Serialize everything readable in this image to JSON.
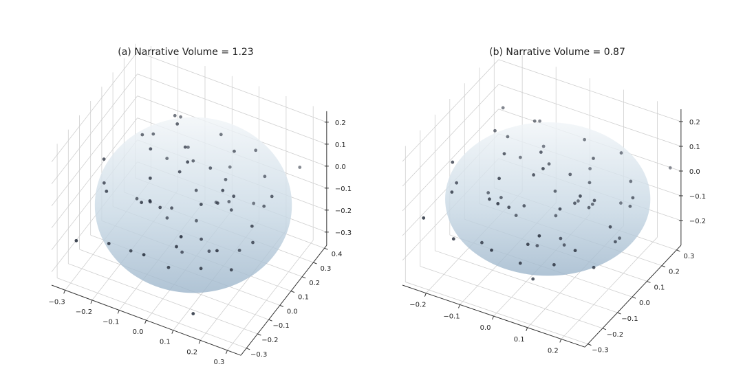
{
  "chart_data": [
    {
      "type": "scatter",
      "projection": "3d",
      "title": "(a) Narrative Volume = 1.23",
      "xlim": [
        -0.35,
        0.35
      ],
      "ylim": [
        -0.35,
        0.42
      ],
      "zlim": [
        -0.36,
        0.25
      ],
      "xticks": [
        -0.3,
        -0.2,
        -0.1,
        0.0,
        0.1,
        0.2,
        0.3
      ],
      "xtick_labels": [
        "−0.3",
        "−0.2",
        "−0.1",
        "0.0",
        "0.1",
        "0.2",
        "0.3"
      ],
      "yticks": [
        -0.3,
        -0.2,
        -0.1,
        0.0,
        0.1,
        0.2,
        0.3,
        0.4
      ],
      "ytick_labels": [
        "−0.3",
        "−0.2",
        "−0.1",
        "0.0",
        "0.1",
        "0.2",
        "0.3",
        "0.4"
      ],
      "zticks": [
        -0.3,
        -0.2,
        -0.1,
        0.0,
        0.1,
        0.2
      ],
      "ztick_labels": [
        "−0.3",
        "−0.2",
        "−0.1",
        "0.0",
        "0.1",
        "0.2"
      ],
      "grid": true,
      "ellipsoid": {
        "center": [
          0.03,
          0.0,
          -0.05
        ],
        "radii": [
          0.34,
          0.33,
          0.3
        ],
        "color": "#a9c0d4"
      },
      "point_color": "#2b3240",
      "points": [
        [
          -0.2,
          0.1,
          0.1
        ],
        [
          0.05,
          0.2,
          0.15
        ],
        [
          0.1,
          -0.1,
          0.05
        ],
        [
          -0.05,
          0.0,
          -0.1
        ],
        [
          0.15,
          0.05,
          -0.05
        ],
        [
          -0.1,
          -0.15,
          0.0
        ],
        [
          0.2,
          -0.05,
          0.1
        ],
        [
          0.0,
          0.1,
          -0.2
        ],
        [
          -0.15,
          0.05,
          -0.15
        ],
        [
          0.1,
          0.15,
          -0.1
        ],
        [
          0.05,
          -0.2,
          -0.1
        ],
        [
          -0.25,
          -0.1,
          -0.05
        ],
        [
          0.22,
          0.18,
          0.05
        ],
        [
          -0.08,
          0.22,
          0.02
        ],
        [
          0.12,
          -0.15,
          -0.2
        ],
        [
          0.0,
          -0.05,
          0.12
        ],
        [
          -0.18,
          0.15,
          0.08
        ],
        [
          0.25,
          0.0,
          -0.12
        ],
        [
          0.02,
          0.05,
          -0.02
        ],
        [
          -0.05,
          -0.25,
          -0.15
        ],
        [
          0.17,
          0.22,
          0.12
        ],
        [
          -0.12,
          -0.02,
          0.15
        ],
        [
          0.08,
          0.02,
          -0.25
        ],
        [
          -0.02,
          0.12,
          0.05
        ],
        [
          0.3,
          0.05,
          0.08
        ],
        [
          -0.3,
          0.0,
          -0.1
        ],
        [
          0.05,
          0.28,
          -0.05
        ],
        [
          0.1,
          -0.28,
          0.02
        ],
        [
          -0.1,
          0.08,
          -0.22
        ],
        [
          0.14,
          0.1,
          0.18
        ],
        [
          -0.2,
          -0.2,
          -0.2
        ],
        [
          0.2,
          -0.2,
          -0.05
        ],
        [
          -0.06,
          -0.08,
          -0.05
        ],
        [
          0.06,
          0.08,
          0.08
        ],
        [
          0.0,
          -0.15,
          -0.25
        ],
        [
          -0.15,
          0.2,
          -0.05
        ],
        [
          0.25,
          0.1,
          -0.02
        ],
        [
          -0.08,
          -0.12,
          0.1
        ],
        [
          0.12,
          0.0,
          0.0
        ],
        [
          -0.22,
          0.1,
          -0.2
        ],
        [
          0.04,
          0.18,
          -0.15
        ],
        [
          0.18,
          -0.1,
          0.15
        ],
        [
          -0.12,
          0.25,
          0.12
        ],
        [
          0.0,
          0.0,
          0.2
        ],
        [
          0.08,
          -0.05,
          -0.15
        ],
        [
          -0.28,
          -0.05,
          0.05
        ],
        [
          0.15,
          0.25,
          -0.15
        ],
        [
          -0.04,
          -0.22,
          0.08
        ],
        [
          0.22,
          -0.12,
          -0.18
        ],
        [
          -0.16,
          -0.1,
          -0.28
        ],
        [
          0.1,
          0.12,
          0.02
        ],
        [
          -0.02,
          0.02,
          -0.3
        ],
        [
          0.05,
          -0.1,
          0.22
        ],
        [
          -0.1,
          0.15,
          0.2
        ],
        [
          0.28,
          -0.08,
          0.02
        ],
        [
          0.12,
          -0.22,
          -0.36
        ],
        [
          -0.3,
          -0.25,
          -0.2
        ],
        [
          0.3,
          0.3,
          0.05
        ],
        [
          -0.05,
          0.05,
          0.25
        ],
        [
          0.18,
          0.05,
          -0.22
        ]
      ]
    },
    {
      "type": "scatter",
      "projection": "3d",
      "title": "(b) Narrative Volume = 0.87",
      "xlim": [
        -0.27,
        0.27
      ],
      "ylim": [
        -0.32,
        0.33
      ],
      "zlim": [
        -0.3,
        0.25
      ],
      "xticks": [
        -0.2,
        -0.1,
        0.0,
        0.1,
        0.2
      ],
      "xtick_labels": [
        "−0.2",
        "−0.1",
        "0.0",
        "0.1",
        "0.2"
      ],
      "yticks": [
        -0.3,
        -0.2,
        -0.1,
        0.0,
        0.1,
        0.2,
        0.3
      ],
      "ytick_labels": [
        "−0.3",
        "−0.2",
        "−0.1",
        "0.0",
        "0.1",
        "0.2",
        "0.3"
      ],
      "zticks": [
        -0.2,
        -0.1,
        0.0,
        0.1,
        0.2
      ],
      "ztick_labels": [
        "−0.2",
        "−0.1",
        "0.0",
        "0.1",
        "0.2"
      ],
      "grid": true,
      "ellipsoid": {
        "center": [
          0.02,
          0.0,
          -0.02
        ],
        "radii": [
          0.28,
          0.28,
          0.22
        ],
        "color": "#a9c0d4"
      },
      "point_color": "#2b3240",
      "points": [
        [
          -0.18,
          0.1,
          0.1
        ],
        [
          0.05,
          0.18,
          0.12
        ],
        [
          0.1,
          -0.1,
          0.04
        ],
        [
          -0.05,
          0.0,
          -0.08
        ],
        [
          0.12,
          0.05,
          -0.04
        ],
        [
          -0.1,
          -0.12,
          0.0
        ],
        [
          0.18,
          -0.05,
          0.08
        ],
        [
          0.0,
          0.1,
          -0.16
        ],
        [
          -0.14,
          0.05,
          -0.12
        ],
        [
          0.1,
          0.12,
          -0.08
        ],
        [
          0.04,
          -0.18,
          -0.08
        ],
        [
          -0.22,
          -0.1,
          -0.04
        ],
        [
          0.2,
          0.15,
          0.04
        ],
        [
          -0.08,
          0.2,
          0.02
        ],
        [
          0.1,
          -0.14,
          -0.16
        ],
        [
          0.0,
          -0.05,
          0.1
        ],
        [
          -0.16,
          0.14,
          0.06
        ],
        [
          0.22,
          0.0,
          -0.1
        ],
        [
          0.02,
          0.05,
          -0.02
        ],
        [
          -0.05,
          -0.22,
          -0.12
        ],
        [
          0.15,
          0.2,
          0.1
        ],
        [
          -0.1,
          -0.02,
          0.12
        ],
        [
          0.06,
          0.02,
          -0.2
        ],
        [
          -0.02,
          0.1,
          0.04
        ],
        [
          0.25,
          0.05,
          0.06
        ],
        [
          -0.25,
          0.0,
          -0.08
        ],
        [
          0.04,
          0.24,
          -0.04
        ],
        [
          0.1,
          -0.24,
          0.02
        ],
        [
          -0.1,
          0.06,
          -0.18
        ],
        [
          0.12,
          0.08,
          0.14
        ],
        [
          -0.18,
          -0.18,
          -0.16
        ],
        [
          0.18,
          -0.18,
          -0.04
        ],
        [
          -0.06,
          -0.08,
          -0.04
        ],
        [
          0.06,
          0.06,
          0.06
        ],
        [
          0.0,
          -0.14,
          -0.2
        ],
        [
          -0.14,
          0.18,
          -0.04
        ],
        [
          0.22,
          0.1,
          -0.02
        ],
        [
          -0.08,
          -0.1,
          0.08
        ],
        [
          0.1,
          0.0,
          0.0
        ],
        [
          -0.2,
          0.1,
          -0.16
        ],
        [
          0.04,
          0.16,
          -0.12
        ],
        [
          0.16,
          -0.1,
          0.12
        ],
        [
          -0.1,
          0.22,
          0.1
        ],
        [
          0.0,
          0.0,
          0.16
        ],
        [
          0.08,
          -0.05,
          -0.12
        ],
        [
          -0.24,
          -0.05,
          0.04
        ],
        [
          0.14,
          0.22,
          -0.12
        ],
        [
          -0.04,
          -0.2,
          0.06
        ],
        [
          0.2,
          -0.1,
          -0.15
        ],
        [
          -0.14,
          -0.08,
          -0.22
        ],
        [
          0.1,
          0.1,
          0.02
        ],
        [
          -0.02,
          0.02,
          -0.24
        ],
        [
          0.05,
          -0.1,
          0.18
        ],
        [
          -0.08,
          0.14,
          0.16
        ],
        [
          0.24,
          -0.08,
          0.02
        ],
        [
          -0.26,
          -0.2,
          -0.1
        ],
        [
          0.26,
          0.28,
          0.04
        ],
        [
          0.02,
          -0.1,
          -0.28
        ],
        [
          0.18,
          0.12,
          -0.18
        ],
        [
          -0.2,
          0.2,
          0.12
        ]
      ]
    }
  ]
}
